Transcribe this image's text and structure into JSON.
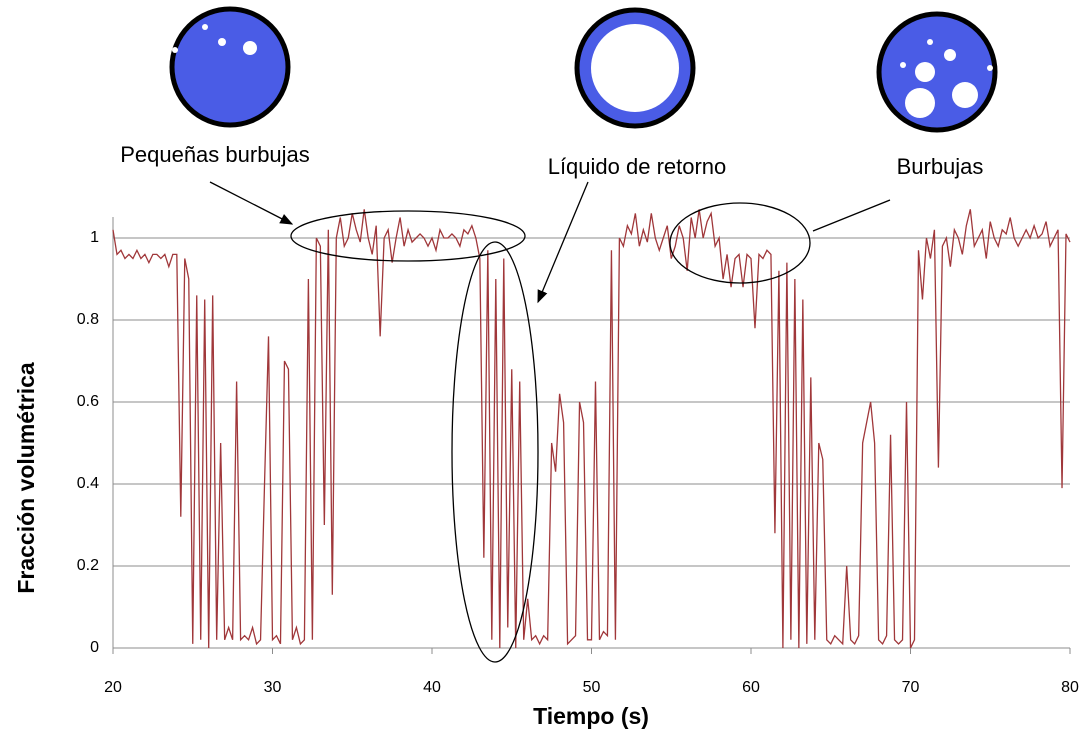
{
  "chart_data": {
    "type": "line",
    "x_label": "Tiempo (s)",
    "y_label": "Fracción volumétrica",
    "annotations": [
      "Pequeñas burbujas",
      "Líquido de retorno",
      "Burbujas"
    ],
    "color": "#a0373a",
    "xlim": [
      20,
      80
    ],
    "xticks": [
      20,
      30,
      40,
      50,
      60,
      70,
      80
    ],
    "ylim": [
      0,
      1.1
    ],
    "yticks": [
      0,
      0.2,
      0.4,
      0.6,
      0.8,
      1
    ],
    "grid": true,
    "x": [
      20,
      20.25,
      20.5,
      20.75,
      21,
      21.25,
      21.5,
      21.75,
      22,
      22.25,
      22.5,
      22.75,
      23,
      23.25,
      23.5,
      23.75,
      24,
      24.25,
      24.5,
      24.75,
      25,
      25.25,
      25.5,
      25.75,
      26,
      26.25,
      26.5,
      26.75,
      27,
      27.25,
      27.5,
      27.75,
      28,
      28.25,
      28.5,
      28.75,
      29,
      29.25,
      29.5,
      29.75,
      30,
      30.25,
      30.5,
      30.75,
      31,
      31.25,
      31.5,
      31.75,
      32,
      32.25,
      32.5,
      32.75,
      33,
      33.25,
      33.5,
      33.75,
      34,
      34.25,
      34.5,
      34.75,
      35,
      35.25,
      35.5,
      35.75,
      36,
      36.25,
      36.5,
      36.75,
      37,
      37.25,
      37.5,
      37.75,
      38,
      38.25,
      38.5,
      38.75,
      39,
      39.25,
      39.5,
      39.75,
      40,
      40.25,
      40.5,
      40.75,
      41,
      41.25,
      41.5,
      41.75,
      42,
      42.25,
      42.5,
      42.75,
      43,
      43.25,
      43.5,
      43.75,
      44,
      44.25,
      44.5,
      44.75,
      45,
      45.25,
      45.5,
      45.75,
      46,
      46.25,
      46.5,
      46.75,
      47,
      47.25,
      47.5,
      47.75,
      48,
      48.25,
      48.5,
      48.75,
      49,
      49.25,
      49.5,
      49.75,
      50,
      50.25,
      50.5,
      50.75,
      51,
      51.25,
      51.5,
      51.75,
      52,
      52.25,
      52.5,
      52.75,
      53,
      53.25,
      53.5,
      53.75,
      54,
      54.25,
      54.5,
      54.75,
      55,
      55.25,
      55.5,
      55.75,
      56,
      56.25,
      56.5,
      56.75,
      57,
      57.25,
      57.5,
      57.75,
      58,
      58.25,
      58.5,
      58.75,
      59,
      59.25,
      59.5,
      59.75,
      60,
      60.25,
      60.5,
      60.75,
      61,
      61.25,
      61.5,
      61.75,
      62,
      62.25,
      62.5,
      62.75,
      63,
      63.25,
      63.5,
      63.75,
      64,
      64.25,
      64.5,
      64.75,
      65,
      65.25,
      65.5,
      65.75,
      66,
      66.25,
      66.5,
      66.75,
      67,
      67.25,
      67.5,
      67.75,
      68,
      68.25,
      68.5,
      68.75,
      69,
      69.25,
      69.5,
      69.75,
      70,
      70.25,
      70.5,
      70.75,
      71,
      71.25,
      71.5,
      71.75,
      72,
      72.25,
      72.5,
      72.75,
      73,
      73.25,
      73.5,
      73.75,
      74,
      74.25,
      74.5,
      74.75,
      75,
      75.25,
      75.5,
      75.75,
      76,
      76.25,
      76.5,
      76.75,
      77,
      77.25,
      77.5,
      77.75,
      78,
      78.25,
      78.5,
      78.75,
      79,
      79.25,
      79.5,
      79.75,
      80
    ],
    "values": [
      1.02,
      0.96,
      0.97,
      0.95,
      0.96,
      0.95,
      0.97,
      0.95,
      0.96,
      0.94,
      0.96,
      0.96,
      0.95,
      0.96,
      0.93,
      0.96,
      0.96,
      0.32,
      0.95,
      0.9,
      0.01,
      0.86,
      0.02,
      0.85,
      0.0,
      0.86,
      0.02,
      0.5,
      0.02,
      0.05,
      0.02,
      0.65,
      0.02,
      0.03,
      0.02,
      0.05,
      0.01,
      0.02,
      0.4,
      0.76,
      0.02,
      0.03,
      0.01,
      0.7,
      0.68,
      0.02,
      0.05,
      0.01,
      0.02,
      0.9,
      0.02,
      1.0,
      0.98,
      0.3,
      1.02,
      0.13,
      1.0,
      1.05,
      0.98,
      1.0,
      1.06,
      1.02,
      0.99,
      1.07,
      1.0,
      0.96,
      1.03,
      0.76,
      1.0,
      1.02,
      0.94,
      1.0,
      1.05,
      0.98,
      1.02,
      0.99,
      1.0,
      1.01,
      1.0,
      0.98,
      1.0,
      0.97,
      1.02,
      1.0,
      1.0,
      1.01,
      1.0,
      0.98,
      1.02,
      1.01,
      1.03,
      1.0,
      0.95,
      0.22,
      0.97,
      0.02,
      0.9,
      0.0,
      0.95,
      0.05,
      0.68,
      0.0,
      0.65,
      0.02,
      0.12,
      0.02,
      0.03,
      0.01,
      0.03,
      0.02,
      0.5,
      0.43,
      0.62,
      0.55,
      0.01,
      0.02,
      0.03,
      0.6,
      0.55,
      0.02,
      0.02,
      0.65,
      0.02,
      0.04,
      0.03,
      0.97,
      0.02,
      1.0,
      0.98,
      1.03,
      1.01,
      1.06,
      0.98,
      1.02,
      0.99,
      1.06,
      1.0,
      0.97,
      1.0,
      1.03,
      0.95,
      0.98,
      1.03,
      1.0,
      0.92,
      1.05,
      1.0,
      1.07,
      1.0,
      1.04,
      1.06,
      0.98,
      1.0,
      0.9,
      0.96,
      0.88,
      0.95,
      0.96,
      0.88,
      0.96,
      0.95,
      0.78,
      0.96,
      0.95,
      0.97,
      0.96,
      0.28,
      0.92,
      0.0,
      0.94,
      0.02,
      0.9,
      0.0,
      0.85,
      0.01,
      0.66,
      0.02,
      0.5,
      0.46,
      0.02,
      0.01,
      0.03,
      0.02,
      0.01,
      0.2,
      0.02,
      0.01,
      0.03,
      0.5,
      0.55,
      0.6,
      0.5,
      0.02,
      0.01,
      0.03,
      0.52,
      0.02,
      0.01,
      0.02,
      0.6,
      0.0,
      0.02,
      0.97,
      0.85,
      1.0,
      0.95,
      1.02,
      0.44,
      0.98,
      1.0,
      0.93,
      1.02,
      1.0,
      0.96,
      1.03,
      1.07,
      0.98,
      1.0,
      1.02,
      0.95,
      1.04,
      1.0,
      0.98,
      1.02,
      1.01,
      1.05,
      1.0,
      0.98,
      1.0,
      1.02,
      1.0,
      1.03,
      1.0,
      1.01,
      1.04,
      0.98,
      1.0,
      1.02,
      0.39,
      1.01,
      0.99
    ]
  }
}
